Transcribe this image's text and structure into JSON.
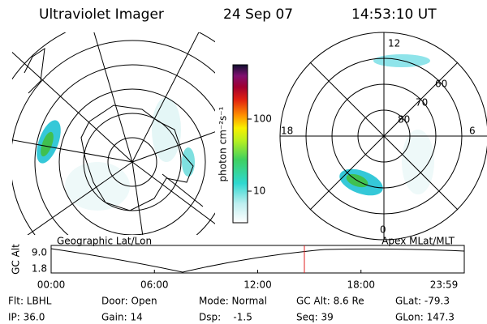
{
  "header": {
    "title": "Ultraviolet Imager",
    "date": "24 Sep 07",
    "time": "14:53:10 UT"
  },
  "colorbar": {
    "label": "photon cm⁻²s⁻¹",
    "ticks": [
      "100",
      "10"
    ]
  },
  "left_map": {
    "label": "Geographic Lat/Lon"
  },
  "right_map": {
    "label": "Apex MLat/MLT",
    "mlt_labels": [
      "12",
      "18",
      "6",
      "0"
    ],
    "lat_labels": [
      "60",
      "70",
      "80"
    ]
  },
  "timeline": {
    "ylabel": "GC Alt",
    "yticks": [
      "9.0",
      "1.8"
    ],
    "xticks": [
      "00:00",
      "06:00",
      "12:00",
      "18:00",
      "23:59"
    ]
  },
  "footer": {
    "rows": [
      [
        "Flt: LBHL",
        "Door: Open",
        "Mode: Normal",
        "GC Alt: 8.6 Re",
        "GLat: -79.3"
      ],
      [
        "IP: 36.0",
        "Gain: 14",
        "Dsp:    -1.5",
        "Seq: 39",
        "GLon: 147.3"
      ]
    ]
  }
}
